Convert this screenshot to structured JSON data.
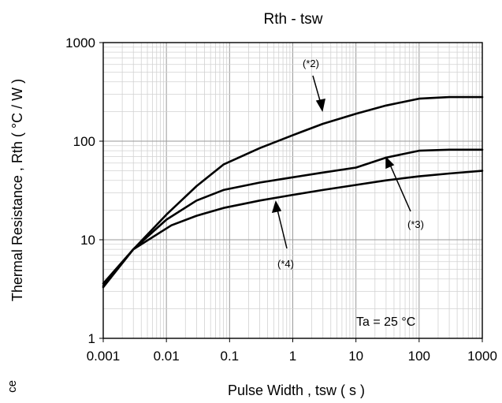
{
  "chart_data": {
    "type": "line",
    "title": "Rth - tsw",
    "xlabel": "Pulse Width , tsw ( s )",
    "ylabel": "Thermal Resistance , Rth ( °C / W )",
    "x_scale": "log",
    "y_scale": "log",
    "xlim": [
      0.001,
      1000
    ],
    "ylim": [
      1,
      1000
    ],
    "x_ticks": [
      "0.001",
      "0.01",
      "0.1",
      "1",
      "10",
      "100",
      "1000"
    ],
    "y_ticks": [
      "1",
      "10",
      "100",
      "1000"
    ],
    "grid": true,
    "series": [
      {
        "name": "(*2)",
        "x": [
          0.001,
          0.003,
          0.01,
          0.03,
          0.08,
          0.3,
          1,
          3,
          10,
          30,
          100,
          300,
          1000
        ],
        "y": [
          3.6,
          8,
          18,
          35,
          58,
          85,
          115,
          150,
          190,
          230,
          270,
          280,
          280
        ]
      },
      {
        "name": "(*3)",
        "x": [
          0.001,
          0.003,
          0.01,
          0.03,
          0.08,
          0.3,
          1,
          3,
          10,
          30,
          100,
          300,
          1000
        ],
        "y": [
          3.4,
          8,
          16,
          25,
          32,
          38,
          43,
          48,
          54,
          68,
          80,
          82,
          82
        ]
      },
      {
        "name": "(*4)",
        "x": [
          0.001,
          0.003,
          0.012,
          0.03,
          0.08,
          0.3,
          1,
          3,
          10,
          30,
          100,
          300,
          1000
        ],
        "y": [
          3.3,
          8,
          14,
          17.5,
          21,
          25,
          28.5,
          32,
          36,
          40,
          44,
          47,
          50
        ]
      }
    ],
    "annotations": [
      {
        "label": "(*2)",
        "series": "(*2)"
      },
      {
        "label": "(*3)",
        "series": "(*3)"
      },
      {
        "label": "(*4)",
        "series": "(*4)"
      }
    ],
    "condition_label": "Ta = 25 °C"
  },
  "edge_text": "ce"
}
